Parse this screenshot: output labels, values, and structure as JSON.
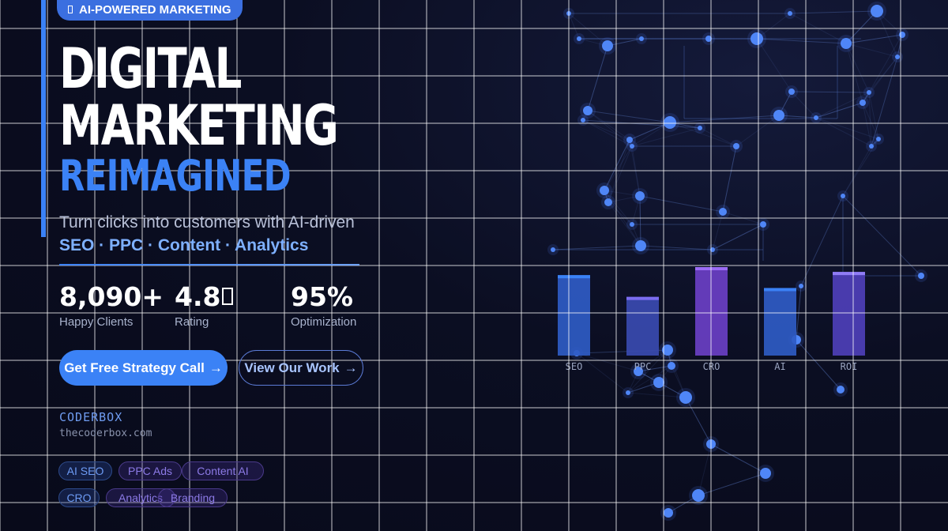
{
  "badge": {
    "icon": "box-icon",
    "label": "AI-POWERED MARKETING"
  },
  "headline": {
    "line1": "DIGITAL",
    "line2": "MARKETING",
    "line3": "REIMAGINED"
  },
  "subheading": {
    "line1": "Turn clicks into customers with AI-driven",
    "line2": "SEO · PPC · Content · Analytics"
  },
  "stats": [
    {
      "value": "8,090+",
      "label": "Happy Clients"
    },
    {
      "value": "4.8",
      "label": "Rating",
      "icon": "star-icon"
    },
    {
      "value": "95%",
      "label": "Optimization"
    }
  ],
  "actions": {
    "primary_label": "Get Free Strategy Call",
    "secondary_label": "View Our Work",
    "arrow": "→"
  },
  "brand": {
    "name": "CODERBOX",
    "domain": "thecoderbox.com"
  },
  "tags": [
    "AI SEO",
    "PPC Ads",
    "Content AI",
    "CRO",
    "Analytics",
    "Branding"
  ],
  "chart_data": {
    "type": "bar",
    "categories": [
      "SEO",
      "PPC",
      "CRO",
      "AI",
      "ROI"
    ],
    "values": [
      100,
      73,
      110,
      84,
      104
    ],
    "colors": [
      "#2f5bc4",
      "#3a4ab0",
      "#6a3fc4",
      "#2f5bc4",
      "#4e3fb8"
    ],
    "cap_colors": [
      "#3b82f6",
      "#7b6cf0",
      "#9b6cf5",
      "#3b82f6",
      "#8f7cf5"
    ],
    "ylim": [
      0,
      110
    ]
  },
  "colors": {
    "accent": "#3b82f6",
    "violet": "#8b5cf6",
    "background": "#0b0e22"
  }
}
